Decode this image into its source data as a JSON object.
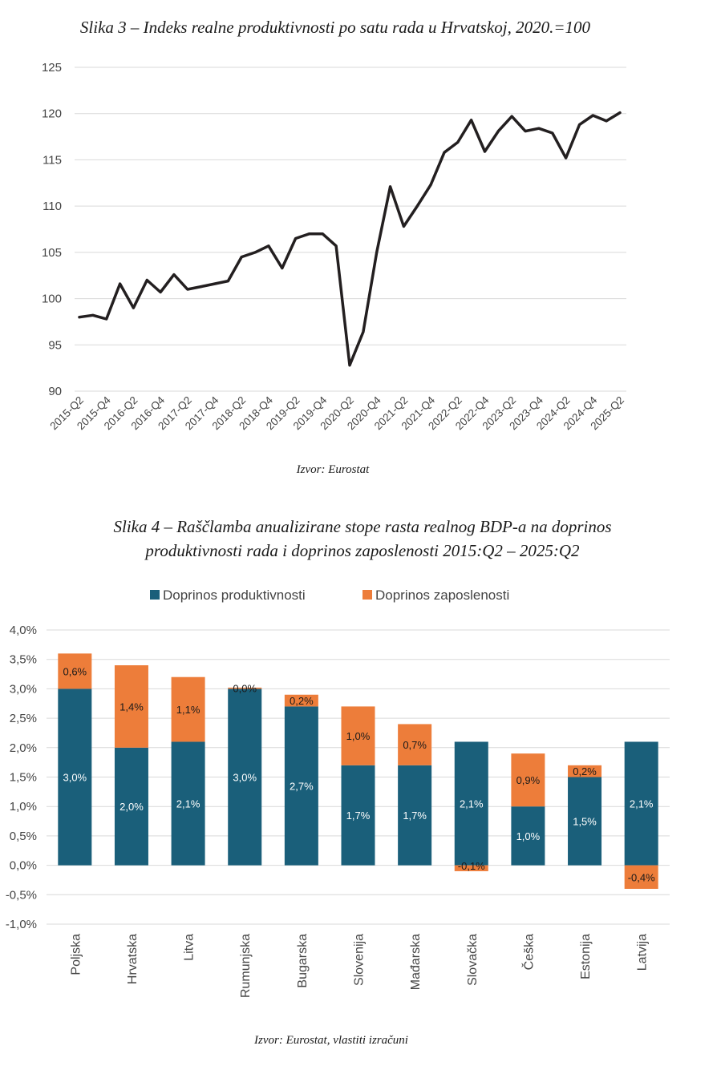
{
  "chart_data": [
    {
      "type": "line",
      "title": "Slika 3 – Indeks realne produktivnosti po satu rada u Hrvatskoj, 2020.=100",
      "source": "Izvor: Eurostat",
      "ylim": [
        90,
        125
      ],
      "yticks": [
        90,
        95,
        100,
        105,
        110,
        115,
        120,
        125
      ],
      "xtick_labels": [
        "2015-Q2",
        "2015-Q4",
        "2016-Q2",
        "2016-Q4",
        "2017-Q2",
        "2017-Q4",
        "2018-Q2",
        "2018-Q4",
        "2019-Q2",
        "2019-Q4",
        "2020-Q2",
        "2020-Q4",
        "2021-Q2",
        "2021-Q4",
        "2022-Q2",
        "2022-Q4",
        "2023-Q2",
        "2023-Q4",
        "2024-Q2",
        "2024-Q4",
        "2025-Q2"
      ],
      "x": [
        "2015-Q2",
        "2015-Q3",
        "2015-Q4",
        "2016-Q1",
        "2016-Q2",
        "2016-Q3",
        "2016-Q4",
        "2017-Q1",
        "2017-Q2",
        "2017-Q3",
        "2017-Q4",
        "2018-Q1",
        "2018-Q2",
        "2018-Q3",
        "2018-Q4",
        "2019-Q1",
        "2019-Q2",
        "2019-Q3",
        "2019-Q4",
        "2020-Q1",
        "2020-Q2",
        "2020-Q3",
        "2020-Q4",
        "2021-Q1",
        "2021-Q2",
        "2021-Q3",
        "2021-Q4",
        "2022-Q1",
        "2022-Q2",
        "2022-Q3",
        "2022-Q4",
        "2023-Q1",
        "2023-Q2",
        "2023-Q3",
        "2023-Q4",
        "2024-Q1",
        "2024-Q2",
        "2024-Q3",
        "2024-Q4",
        "2025-Q1",
        "2025-Q2"
      ],
      "values": [
        98.0,
        98.2,
        97.8,
        101.6,
        99.0,
        102.0,
        100.7,
        102.6,
        101.0,
        101.3,
        101.6,
        101.9,
        104.5,
        105.0,
        105.7,
        103.3,
        106.5,
        107.0,
        107.0,
        105.7,
        92.8,
        96.4,
        105.0,
        112.1,
        107.8,
        110.0,
        112.3,
        115.8,
        116.9,
        119.3,
        115.9,
        118.1,
        119.7,
        118.1,
        118.4,
        117.9,
        115.2,
        118.8,
        119.8,
        119.2,
        120.1
      ],
      "line_color": "#231f20"
    },
    {
      "type": "bar",
      "stacked": true,
      "title_line1": "Slika 4 – Raščlamba anualizirane stope rasta realnog BDP-a na doprinos",
      "title_line2": "produktivnosti rada i doprinos zaposlenosti 2015:Q2 – 2025:Q2",
      "source": "Izvor: Eurostat, vlastiti izračuni",
      "ylim": [
        -1.0,
        4.0
      ],
      "ytick_values": [
        4.0,
        3.5,
        3.0,
        2.5,
        2.0,
        1.5,
        1.0,
        0.5,
        0.0,
        -0.5,
        -1.0
      ],
      "ytick_labels": [
        "4,0%",
        "3,5%",
        "3,0%",
        "2,5%",
        "2,0%",
        "1,5%",
        "1,0%",
        "0,5%",
        "0,0%",
        "-0,5%",
        "-1,0%"
      ],
      "categories": [
        "Poljska",
        "Hrvatska",
        "Litva",
        "Rumunjska",
        "Bugarska",
        "Slovenija",
        "Mađarska",
        "Slovačka",
        "Češka",
        "Estonija",
        "Latvija"
      ],
      "series": [
        {
          "name": "Doprinos produktivnosti",
          "color": "#1a5f7a",
          "values": [
            3.0,
            2.0,
            2.1,
            3.0,
            2.7,
            1.7,
            1.7,
            2.1,
            1.0,
            1.5,
            2.1
          ],
          "labels": [
            "3,0%",
            "2,0%",
            "2,1%",
            "3,0%",
            "2,7%",
            "1,7%",
            "1,7%",
            "2,1%",
            "1,0%",
            "1,5%",
            "2,1%"
          ],
          "label_color": "#ffffff"
        },
        {
          "name": "Doprinos zaposlenosti",
          "color": "#ed7d3a",
          "values": [
            0.6,
            1.4,
            1.1,
            0.0,
            0.2,
            1.0,
            0.7,
            -0.1,
            0.9,
            0.2,
            -0.4
          ],
          "labels": [
            "0,6%",
            "1,4%",
            "1,1%",
            "0,0%",
            "0,2%",
            "1,0%",
            "0,7%",
            "-0,1%",
            "0,9%",
            "0,2%",
            "-0,4%"
          ],
          "label_color": "#1a1a1a"
        }
      ]
    }
  ]
}
